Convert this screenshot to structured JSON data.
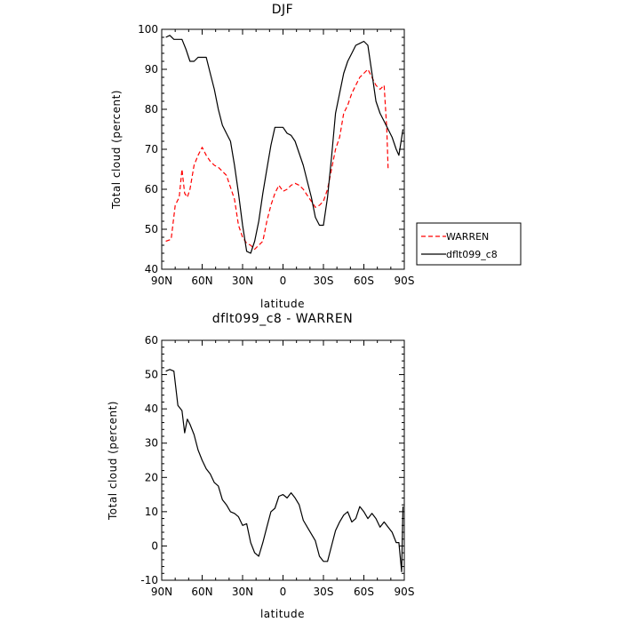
{
  "chart_data": [
    {
      "type": "line",
      "title": "DJF",
      "xlabel": "latitude",
      "ylabel": "Total cloud (percent)",
      "x_tick_labels": [
        "90N",
        "60N",
        "30N",
        "0",
        "30S",
        "60S",
        "90S"
      ],
      "x_tick_values": [
        90,
        60,
        30,
        0,
        -30,
        -60,
        -90
      ],
      "xlim": [
        90,
        -90
      ],
      "ylim": [
        40,
        100
      ],
      "y_tick_labels": [
        "40",
        "50",
        "60",
        "70",
        "80",
        "90",
        "100"
      ],
      "grid": false,
      "legend_position": "outside-right",
      "series": [
        {
          "name": "WARREN",
          "color": "#ff0000",
          "dash": "dashed",
          "points": [
            [
              87,
              47
            ],
            [
              83,
              47.5
            ],
            [
              80,
              56
            ],
            [
              77,
              58
            ],
            [
              75,
              65
            ],
            [
              73,
              59
            ],
            [
              71,
              58
            ],
            [
              69,
              60
            ],
            [
              66,
              66
            ],
            [
              63,
              68.5
            ],
            [
              60,
              70.5
            ],
            [
              57,
              68.5
            ],
            [
              54,
              67
            ],
            [
              51,
              66
            ],
            [
              48,
              65.5
            ],
            [
              45,
              64.5
            ],
            [
              42,
              63.5
            ],
            [
              39,
              60.5
            ],
            [
              36,
              57.5
            ],
            [
              33,
              51
            ],
            [
              30,
              48
            ],
            [
              27,
              46.5
            ],
            [
              24,
              46
            ],
            [
              21,
              45
            ],
            [
              18,
              46
            ],
            [
              15,
              47
            ],
            [
              12,
              52
            ],
            [
              9,
              56
            ],
            [
              6,
              59
            ],
            [
              3,
              61
            ],
            [
              0,
              59.5
            ],
            [
              -3,
              60
            ],
            [
              -6,
              61
            ],
            [
              -9,
              61.5
            ],
            [
              -12,
              61
            ],
            [
              -15,
              60
            ],
            [
              -18,
              58.5
            ],
            [
              -21,
              57
            ],
            [
              -24,
              55.5
            ],
            [
              -27,
              56
            ],
            [
              -30,
              57
            ],
            [
              -33,
              60
            ],
            [
              -36,
              65
            ],
            [
              -39,
              70
            ],
            [
              -42,
              73
            ],
            [
              -45,
              79
            ],
            [
              -48,
              81
            ],
            [
              -51,
              84
            ],
            [
              -54,
              86
            ],
            [
              -57,
              88
            ],
            [
              -60,
              89
            ],
            [
              -63,
              90
            ],
            [
              -66,
              88
            ],
            [
              -69,
              86
            ],
            [
              -72,
              85
            ],
            [
              -75,
              86
            ],
            [
              -77,
              75
            ],
            [
              -78,
              65
            ]
          ]
        },
        {
          "name": "dflt099_c8",
          "color": "#000000",
          "dash": "solid",
          "points": [
            [
              87,
              98
            ],
            [
              84,
              98.5
            ],
            [
              81,
              97.5
            ],
            [
              78,
              97.5
            ],
            [
              75,
              97.5
            ],
            [
              72,
              95
            ],
            [
              69,
              92
            ],
            [
              66,
              92
            ],
            [
              63,
              93
            ],
            [
              60,
              93
            ],
            [
              57,
              93
            ],
            [
              54,
              89
            ],
            [
              51,
              85
            ],
            [
              48,
              80
            ],
            [
              45,
              76
            ],
            [
              42,
              74
            ],
            [
              39,
              72
            ],
            [
              36,
              66
            ],
            [
              33,
              59
            ],
            [
              30,
              51
            ],
            [
              27,
              44.5
            ],
            [
              24,
              44
            ],
            [
              21,
              47
            ],
            [
              18,
              52
            ],
            [
              15,
              59
            ],
            [
              12,
              65
            ],
            [
              9,
              71
            ],
            [
              6,
              75.5
            ],
            [
              3,
              75.5
            ],
            [
              0,
              75.5
            ],
            [
              -3,
              74
            ],
            [
              -6,
              73.5
            ],
            [
              -9,
              72
            ],
            [
              -12,
              69
            ],
            [
              -15,
              66
            ],
            [
              -18,
              62
            ],
            [
              -21,
              58
            ],
            [
              -24,
              53
            ],
            [
              -27,
              51
            ],
            [
              -30,
              51
            ],
            [
              -33,
              58
            ],
            [
              -36,
              68
            ],
            [
              -39,
              79
            ],
            [
              -42,
              84
            ],
            [
              -45,
              89
            ],
            [
              -48,
              92
            ],
            [
              -51,
              94
            ],
            [
              -54,
              96
            ],
            [
              -57,
              96.5
            ],
            [
              -60,
              97
            ],
            [
              -63,
              96
            ],
            [
              -66,
              89
            ],
            [
              -69,
              82
            ],
            [
              -72,
              79
            ],
            [
              -75,
              77
            ],
            [
              -78,
              75
            ],
            [
              -81,
              73
            ],
            [
              -84,
              70
            ],
            [
              -86,
              68.5
            ],
            [
              -89,
              75
            ]
          ]
        }
      ]
    },
    {
      "type": "line",
      "title": "dflt099_c8 - WARREN",
      "xlabel": "latitude",
      "ylabel": "Total cloud (percent)",
      "x_tick_labels": [
        "90N",
        "60N",
        "30N",
        "0",
        "30S",
        "60S",
        "90S"
      ],
      "x_tick_values": [
        90,
        60,
        30,
        0,
        -30,
        -60,
        -90
      ],
      "xlim": [
        90,
        -90
      ],
      "ylim": [
        -10,
        60
      ],
      "y_tick_labels": [
        "-10",
        "0",
        "10",
        "20",
        "30",
        "40",
        "50",
        "60"
      ],
      "grid": false,
      "series": [
        {
          "color": "#000000",
          "dash": "solid",
          "points": [
            [
              87,
              51
            ],
            [
              84,
              51.5
            ],
            [
              81,
              51
            ],
            [
              78,
              41
            ],
            [
              75,
              39.5
            ],
            [
              73,
              33
            ],
            [
              71,
              37
            ],
            [
              69,
              35.5
            ],
            [
              66,
              32.5
            ],
            [
              63,
              28
            ],
            [
              60,
              25
            ],
            [
              57,
              22.5
            ],
            [
              54,
              21
            ],
            [
              51,
              18.5
            ],
            [
              48,
              17.5
            ],
            [
              45,
              13.5
            ],
            [
              42,
              12
            ],
            [
              39,
              10
            ],
            [
              36,
              9.5
            ],
            [
              33,
              8.5
            ],
            [
              30,
              6
            ],
            [
              27,
              6.5
            ],
            [
              24,
              1
            ],
            [
              21,
              -2
            ],
            [
              18,
              -3
            ],
            [
              15,
              1
            ],
            [
              12,
              5.5
            ],
            [
              9,
              10
            ],
            [
              6,
              11
            ],
            [
              3,
              14.5
            ],
            [
              0,
              15
            ],
            [
              -3,
              14
            ],
            [
              -6,
              15.5
            ],
            [
              -9,
              14
            ],
            [
              -12,
              12
            ],
            [
              -15,
              7.5
            ],
            [
              -18,
              5.5
            ],
            [
              -21,
              3.5
            ],
            [
              -24,
              1.5
            ],
            [
              -27,
              -3
            ],
            [
              -30,
              -4.5
            ],
            [
              -33,
              -4.5
            ],
            [
              -36,
              0
            ],
            [
              -39,
              4.5
            ],
            [
              -42,
              7
            ],
            [
              -45,
              9
            ],
            [
              -48,
              10
            ],
            [
              -51,
              7
            ],
            [
              -54,
              8
            ],
            [
              -57,
              11.5
            ],
            [
              -60,
              10
            ],
            [
              -63,
              8
            ],
            [
              -66,
              9.5
            ],
            [
              -69,
              8
            ],
            [
              -72,
              5.5
            ],
            [
              -75,
              7
            ],
            [
              -78,
              5.5
            ],
            [
              -81,
              4
            ],
            [
              -84,
              1
            ],
            [
              -86,
              1
            ],
            [
              -88,
              -7.5
            ],
            [
              -89,
              11.5
            ]
          ]
        }
      ]
    }
  ]
}
